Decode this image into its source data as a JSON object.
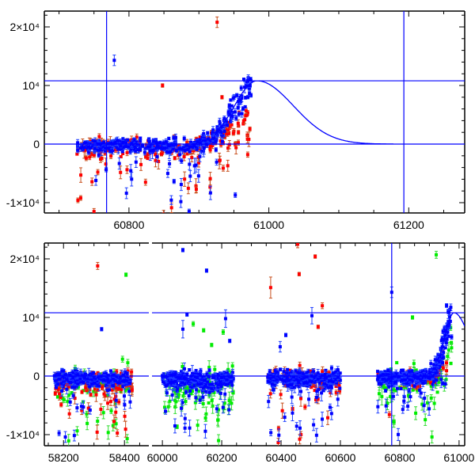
{
  "chart_data": [
    {
      "type": "scatter",
      "panel": "top",
      "title": "",
      "xlabel": "",
      "ylabel": "",
      "xlim": [
        60679,
        61280
      ],
      "ylim": [
        -11800,
        22700
      ],
      "x_ticks": [
        {
          "value": 60800,
          "label": "60800"
        },
        {
          "value": 61000,
          "label": "61000"
        },
        {
          "value": 61200,
          "label": "61200"
        }
      ],
      "y_ticks": [
        {
          "value": 20000,
          "label": "2×10⁴"
        },
        {
          "value": 10000,
          "label": "10⁴"
        },
        {
          "value": 0,
          "label": "0"
        },
        {
          "value": -10000,
          "label": "-1×10⁴"
        }
      ],
      "reference_lines": {
        "horizontal": [
          0,
          10800
        ],
        "vertical": [
          60768,
          61193
        ]
      },
      "model": {
        "type": "asymmetric-gaussian",
        "peak_x": 60983,
        "peak_y": 10800,
        "sigma_rise": 32,
        "sigma_fall": 52,
        "x_range": [
          60930,
          61178
        ]
      },
      "series": [
        {
          "name": "red",
          "color": "#ff0000",
          "errcolor": "#c8501e",
          "clusters": [
            {
              "x_range": [
                60725,
                60975
              ],
              "n": 220,
              "base": -600,
              "scatter": 800,
              "tail": 0.2,
              "tail_max": 11000,
              "follow": 0.5
            }
          ],
          "outliers": [
            [
              60926,
              20800,
              900
            ],
            [
              60848,
              10000,
              300
            ],
            [
              60933,
              8000,
              300
            ],
            [
              60727,
              -9600,
              400
            ],
            [
              60731,
              -9200,
              400
            ],
            [
              60750,
              -11500,
              500
            ]
          ]
        },
        {
          "name": "blue",
          "color": "#0000ff",
          "errcolor": "#2040ff",
          "clusters": [
            {
              "x_range": [
                60725,
                60975
              ],
              "n": 380,
              "base": -300,
              "scatter": 600,
              "tail": 0.12,
              "tail_max": 11000,
              "follow": 1.0
            }
          ],
          "outliers": [
            [
              60779,
              14300,
              900
            ],
            [
              60970,
              10800,
              600
            ],
            [
              60952,
              -8700,
              400
            ],
            [
              60886,
              -11500,
              400
            ]
          ]
        }
      ]
    },
    {
      "type": "scatter",
      "panel": "bottom",
      "title": "",
      "xlabel": "",
      "ylabel": "",
      "x_segments": [
        [
          58137,
          58480
        ],
        [
          59965,
          61019
        ]
      ],
      "ylim": [
        -11900,
        22700
      ],
      "x_ticks": [
        {
          "value": 58200,
          "label": "58200"
        },
        {
          "value": 58400,
          "label": "58400"
        },
        {
          "value": 60000,
          "label": "60000"
        },
        {
          "value": 60200,
          "label": "60200"
        },
        {
          "value": 60400,
          "label": "60400"
        },
        {
          "value": 60600,
          "label": "60600"
        },
        {
          "value": 60800,
          "label": "60800"
        },
        {
          "value": 61000,
          "label": "61000"
        }
      ],
      "y_ticks": [
        {
          "value": 20000,
          "label": "2×10⁴"
        },
        {
          "value": 10000,
          "label": "10⁴"
        },
        {
          "value": 0,
          "label": "0"
        },
        {
          "value": -10000,
          "label": "-1×10⁴"
        }
      ],
      "reference_lines": {
        "horizontal": [
          0,
          10800
        ],
        "vertical": [
          60773
        ]
      },
      "model": {
        "type": "asymmetric-gaussian",
        "peak_x": 60983,
        "peak_y": 10800,
        "sigma_rise": 32,
        "sigma_fall": 52,
        "x_range": [
          60930,
          61019
        ]
      },
      "series": [
        {
          "name": "green",
          "color": "#00ee00",
          "errcolor": "#30dd30",
          "clusters": [
            {
              "x_range": [
                58170,
                58420
              ],
              "n": 70,
              "base": -1500,
              "scatter": 1500,
              "tail": 0.4,
              "tail_max": 11000,
              "follow": 0
            },
            {
              "x_range": [
                60000,
                60240
              ],
              "n": 110,
              "base": -1200,
              "scatter": 1400,
              "tail": 0.45,
              "tail_max": 11000,
              "follow": 0
            },
            {
              "x_range": [
                60725,
                60975
              ],
              "n": 80,
              "base": -900,
              "scatter": 1300,
              "tail": 0.3,
              "tail_max": 10000,
              "follow": 0.6
            }
          ],
          "outliers": [
            [
              58405,
              17300,
              300
            ],
            [
              60104,
              8900,
              400
            ],
            [
              60139,
              7800,
              300
            ],
            [
              60205,
              7500,
              400
            ],
            [
              60166,
              5300,
              300
            ],
            [
              60923,
              20700,
              600
            ],
            [
              60843,
              10000,
              300
            ]
          ]
        },
        {
          "name": "red",
          "color": "#ff0000",
          "errcolor": "#c8501e",
          "clusters": [
            {
              "x_range": [
                58170,
                58425
              ],
              "n": 170,
              "base": -900,
              "scatter": 800,
              "tail": 0.2,
              "tail_max": 11000,
              "follow": 0
            },
            {
              "x_range": [
                60355,
                60600
              ],
              "n": 160,
              "base": -400,
              "scatter": 800,
              "tail": 0.22,
              "tail_max": 12000,
              "follow": 0
            },
            {
              "x_range": [
                60725,
                60975
              ],
              "n": 60,
              "base": -500,
              "scatter": 700,
              "tail": 0.1,
              "tail_max": 8000,
              "follow": 0.5
            }
          ],
          "outliers": [
            [
              58312,
              18800,
              600
            ],
            [
              60365,
              15100,
              1800
            ],
            [
              60456,
              22500,
              600
            ],
            [
              60515,
              20400,
              300
            ],
            [
              60461,
              17400,
              300
            ],
            [
              60539,
              12000,
              500
            ],
            [
              60525,
              8400,
              300
            ]
          ]
        },
        {
          "name": "blue",
          "color": "#0000ff",
          "errcolor": "#2040ff",
          "clusters": [
            {
              "x_range": [
                58170,
                58420
              ],
              "n": 260,
              "base": -500,
              "scatter": 600,
              "tail": 0.12,
              "tail_max": 11000,
              "follow": 0
            },
            {
              "x_range": [
                60000,
                60240
              ],
              "n": 280,
              "base": -600,
              "scatter": 700,
              "tail": 0.15,
              "tail_max": 11000,
              "follow": 0
            },
            {
              "x_range": [
                60355,
                60600
              ],
              "n": 280,
              "base": -500,
              "scatter": 650,
              "tail": 0.15,
              "tail_max": 12000,
              "follow": 0
            },
            {
              "x_range": [
                60725,
                60975
              ],
              "n": 360,
              "base": -300,
              "scatter": 600,
              "tail": 0.12,
              "tail_max": 11000,
              "follow": 1.0
            }
          ],
          "outliers": [
            [
              58325,
              8000,
              300
            ],
            [
              60069,
              21500,
              300
            ],
            [
              60149,
              18000,
              300
            ],
            [
              60083,
              10500,
              300
            ],
            [
              60213,
              9800,
              1500
            ],
            [
              60227,
              6000,
              300
            ],
            [
              60069,
              8000,
              1500
            ],
            [
              60504,
              10300,
              1400
            ],
            [
              60416,
              7000,
              300
            ],
            [
              60397,
              5000,
              900
            ],
            [
              60773,
              14300,
              900
            ]
          ]
        }
      ]
    }
  ]
}
